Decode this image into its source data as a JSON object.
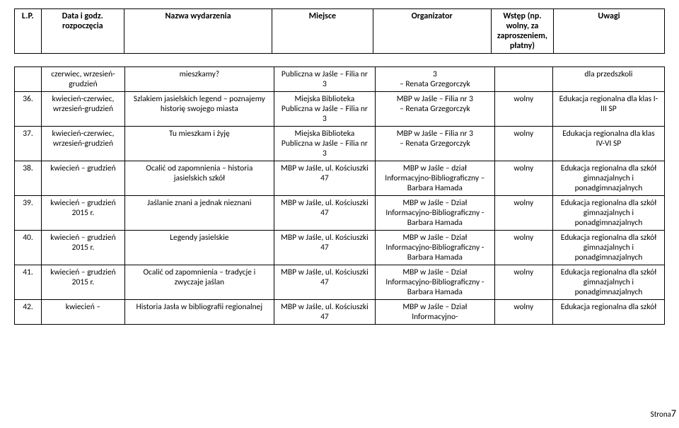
{
  "header": {
    "lp": "L.P.",
    "date": "Data i godz. rozpoczęcia",
    "name": "Nazwa wydarzenia",
    "place": "Miejsce",
    "org": "Organizator",
    "fee": "Wstęp (np. wolny, za zaproszeniem, płatny)",
    "notes": "Uwagi"
  },
  "rows": [
    {
      "lp": "",
      "date": "czerwiec, wrzesień-grudzień",
      "name": "mieszkamy?",
      "place": "Publiczna w Jaśle – Filia nr 3",
      "org": "3\n– Renata Grzegorczyk",
      "fee": "",
      "notes": "dla przedszkoli"
    },
    {
      "lp": "36.",
      "date": "kwiecień-czerwiec, wrzesień-grudzień",
      "name": "Szlakiem jasielskich legend – poznajemy historię swojego miasta",
      "place": "Miejska Biblioteka Publiczna w Jaśle – Filia nr 3",
      "org": "MBP w Jaśle – Filia nr 3\n– Renata Grzegorczyk",
      "fee": "wolny",
      "notes": "Edukacja regionalna dla klas I-III SP"
    },
    {
      "lp": "37.",
      "date": "kwiecień-czerwiec, wrzesień-grudzień",
      "name": "Tu mieszkam i żyję",
      "place": "Miejska Biblioteka Publiczna w Jaśle – Filia nr 3",
      "org": "MBP w Jaśle – Filia nr 3\n– Renata Grzegorczyk",
      "fee": "wolny",
      "notes": "Edukacja regionalna dla klas IV-VI SP"
    },
    {
      "lp": "38.",
      "date": "kwiecień – grudzień",
      "name": "Ocalić od zapomnienia – historia jasielskich szkół",
      "place": "MBP w Jaśle, ul. Kościuszki 47",
      "org": "MBP w Jaśle – dział Informacyjno-Bibliograficzny – Barbara Hamada",
      "fee": "wolny",
      "notes": "Edukacja regionalna dla szkół gimnazjalnych i ponadgimnazjalnych"
    },
    {
      "lp": "39.",
      "date": "kwiecień – grudzień 2015 r.",
      "name": "Jaślanie znani a jednak nieznani",
      "place": "MBP w Jaśle, ul. Kościuszki 47",
      "org": "MBP w Jaśle – Dział Informacyjno-Bibliograficzny - Barbara Hamada",
      "fee": "wolny",
      "notes": "Edukacja regionalna dla szkół gimnazjalnych i ponadgimnazjalnych"
    },
    {
      "lp": "40.",
      "date": "kwiecień – grudzień 2015 r.",
      "name": "Legendy jasielskie",
      "place": "MBP w Jaśle, ul. Kościuszki 47",
      "org": "MBP w Jaśle – Dział Informacyjno-Bibliograficzny - Barbara Hamada",
      "fee": "wolny",
      "notes": "Edukacja regionalna dla szkół gimnazjalnych i ponadgimnazjalnych"
    },
    {
      "lp": "41.",
      "date": "kwiecień – grudzień 2015 r.",
      "name": "Ocalić od zapomnienia – tradycje i zwyczaje jaślan",
      "place": "MBP w Jaśle, ul. Kościuszki 47",
      "org": "MBP w Jaśle – Dział Informacyjno-Bibliograficzny - Barbara Hamada",
      "fee": "wolny",
      "notes": "Edukacja regionalna dla szkół gimnazjalnych i ponadgimnazjalnych"
    },
    {
      "lp": "42.",
      "date": "kwiecień –",
      "name": "Historia Jasła w bibliografii regionalnej",
      "place": "MBP w Jaśle, ul. Kościuszki 47",
      "org": "MBP w Jaśle – Dział Informacyjno-",
      "fee": "wolny",
      "notes": "Edukacja regionalna dla szkół"
    }
  ],
  "pageLabel": "Strona",
  "pageNum": "7"
}
